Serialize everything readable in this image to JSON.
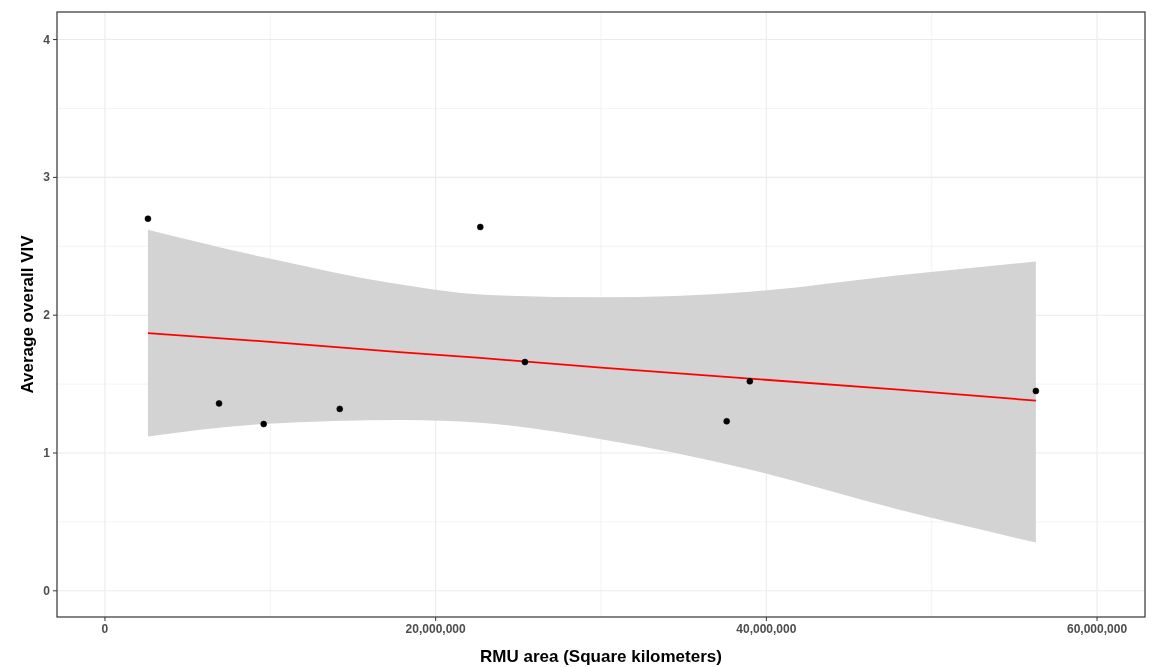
{
  "chart_data": {
    "type": "scatter",
    "xlabel": "RMU area (Square kilometers)",
    "ylabel": "Average overall VIV",
    "xlim": [
      -2900000,
      62900000
    ],
    "xticks": [
      0,
      {
        "value": 20000000,
        "label": "20,000,000"
      },
      {
        "value": 40000000,
        "label": "40,000,000"
      },
      {
        "value": 60000000,
        "label": "60,000,000"
      }
    ],
    "ylim": [
      -0.19,
      4.2
    ],
    "yticks": [
      0,
      1,
      2,
      3,
      4
    ],
    "grid": true,
    "series": [
      {
        "type": "line",
        "marker": "none",
        "color": "#ff0000",
        "x": [
          2600000,
          9600000,
          18000000,
          22700000,
          30000000,
          39000000,
          48000000,
          56300000
        ],
        "values": [
          1.87,
          1.81,
          1.73,
          1.69,
          1.62,
          1.54,
          1.46,
          1.38
        ],
        "lower": [
          1.12,
          1.21,
          1.24,
          1.22,
          1.1,
          0.88,
          0.59,
          0.35
        ],
        "upper": [
          2.62,
          2.42,
          2.22,
          2.15,
          2.13,
          2.17,
          2.29,
          2.39
        ]
      },
      {
        "marker": "circle",
        "color": "#000000",
        "x": [
          2600000,
          6900000,
          9600000,
          14200000,
          22700000,
          25400000,
          37600000,
          39000000,
          56300000
        ],
        "values": [
          2.7,
          1.36,
          1.21,
          1.32,
          2.64,
          1.66,
          1.23,
          1.52,
          1.45
        ]
      }
    ]
  }
}
